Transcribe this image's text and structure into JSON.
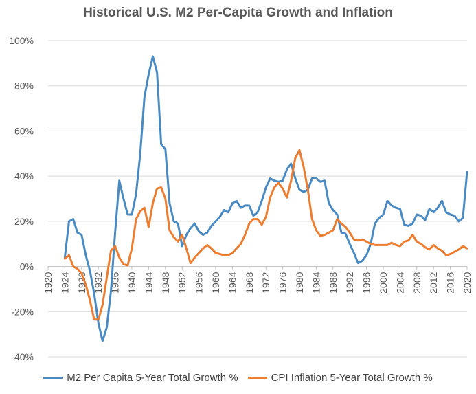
{
  "chart_data": {
    "type": "line",
    "title": "Historical U.S. M2 Per-Capita Growth and Inflation",
    "xlabel": "",
    "ylabel": "",
    "xlim": [
      1920,
      2020
    ],
    "ylim": [
      -40,
      100
    ],
    "y_unit": "%",
    "x_ticks": [
      "1920",
      "1924",
      "1928",
      "1932",
      "1936",
      "1940",
      "1944",
      "1948",
      "1952",
      "1956",
      "1960",
      "1964",
      "1968",
      "1972",
      "1976",
      "1980",
      "1984",
      "1988",
      "1992",
      "1996",
      "2000",
      "2004",
      "2008",
      "2012",
      "2016",
      "2020"
    ],
    "y_ticks": [
      "100%",
      "80%",
      "60%",
      "40%",
      "20%",
      "0%",
      "-20%",
      "-40%"
    ],
    "y_tick_values": [
      100,
      80,
      60,
      40,
      20,
      0,
      -20,
      -40
    ],
    "grid": "horizontal",
    "legend_position": "bottom",
    "x": [
      1924,
      1925,
      1926,
      1927,
      1928,
      1929,
      1930,
      1931,
      1932,
      1933,
      1934,
      1935,
      1936,
      1937,
      1938,
      1939,
      1940,
      1941,
      1942,
      1943,
      1944,
      1945,
      1946,
      1947,
      1948,
      1949,
      1950,
      1951,
      1952,
      1953,
      1954,
      1955,
      1956,
      1957,
      1958,
      1959,
      1960,
      1961,
      1962,
      1963,
      1964,
      1965,
      1966,
      1967,
      1968,
      1969,
      1970,
      1971,
      1972,
      1973,
      1974,
      1975,
      1976,
      1977,
      1978,
      1979,
      1980,
      1981,
      1982,
      1983,
      1984,
      1985,
      1986,
      1987,
      1988,
      1989,
      1990,
      1991,
      1992,
      1993,
      1994,
      1995,
      1996,
      1997,
      1998,
      1999,
      2000,
      2001,
      2002,
      2003,
      2004,
      2005,
      2006,
      2007,
      2008,
      2009,
      2010,
      2011,
      2012,
      2013,
      2014,
      2015,
      2016,
      2017,
      2018,
      2019,
      2020
    ],
    "series": [
      {
        "name": "M2 Per Capita 5-Year Total Growth %",
        "color": "#4a8ac2",
        "values": [
          4,
          20,
          21,
          15,
          14,
          5,
          -2,
          -12,
          -25,
          -33,
          -27,
          -11,
          15,
          38,
          30,
          23,
          23,
          32,
          50,
          75,
          85,
          93,
          86,
          54,
          52,
          28,
          20,
          19,
          9,
          14,
          17,
          19,
          15.5,
          14,
          15,
          18,
          20,
          22,
          25,
          24,
          28,
          29,
          26,
          27,
          27,
          22.5,
          24,
          29,
          35,
          39,
          38,
          37.5,
          38,
          43,
          45.5,
          39,
          34,
          33,
          34,
          39,
          39,
          37.5,
          38,
          28,
          25,
          23,
          15,
          14.5,
          10,
          6,
          1.5,
          2.5,
          5,
          10,
          19,
          21.5,
          23,
          29,
          27,
          26,
          25.5,
          18.5,
          18,
          19,
          23,
          22.5,
          20.5,
          25.5,
          24,
          26,
          29,
          24,
          23,
          22.5,
          20,
          21.5,
          42
        ]
      },
      {
        "name": "CPI Inflation 5-Year Total Growth %",
        "color": "#ed7d31",
        "values": [
          3.5,
          5,
          0,
          -1,
          -3,
          -8,
          -15,
          -23.5,
          -23.5,
          -17,
          -5,
          7,
          9,
          4,
          1,
          0.5,
          8,
          21,
          24.5,
          26,
          17.5,
          28,
          34.5,
          35,
          30,
          16,
          13,
          11,
          14,
          8,
          1.5,
          4,
          6,
          8,
          9.5,
          8,
          6,
          5.5,
          5,
          5,
          6,
          8,
          10,
          14,
          19,
          21,
          21,
          18.5,
          22,
          30.5,
          35,
          37,
          34.5,
          30.5,
          38,
          48,
          51.5,
          44,
          34,
          21,
          16,
          13.5,
          14,
          15,
          16,
          21,
          19,
          17.5,
          15,
          12,
          11.5,
          12,
          11,
          10,
          9.5,
          9.5,
          9.5,
          9.5,
          10.5,
          9.5,
          9,
          11,
          11.5,
          14,
          11,
          10,
          8.5,
          7.5,
          9.5,
          8,
          7,
          5,
          5.5,
          6.5,
          7.5,
          9,
          8
        ]
      }
    ]
  }
}
